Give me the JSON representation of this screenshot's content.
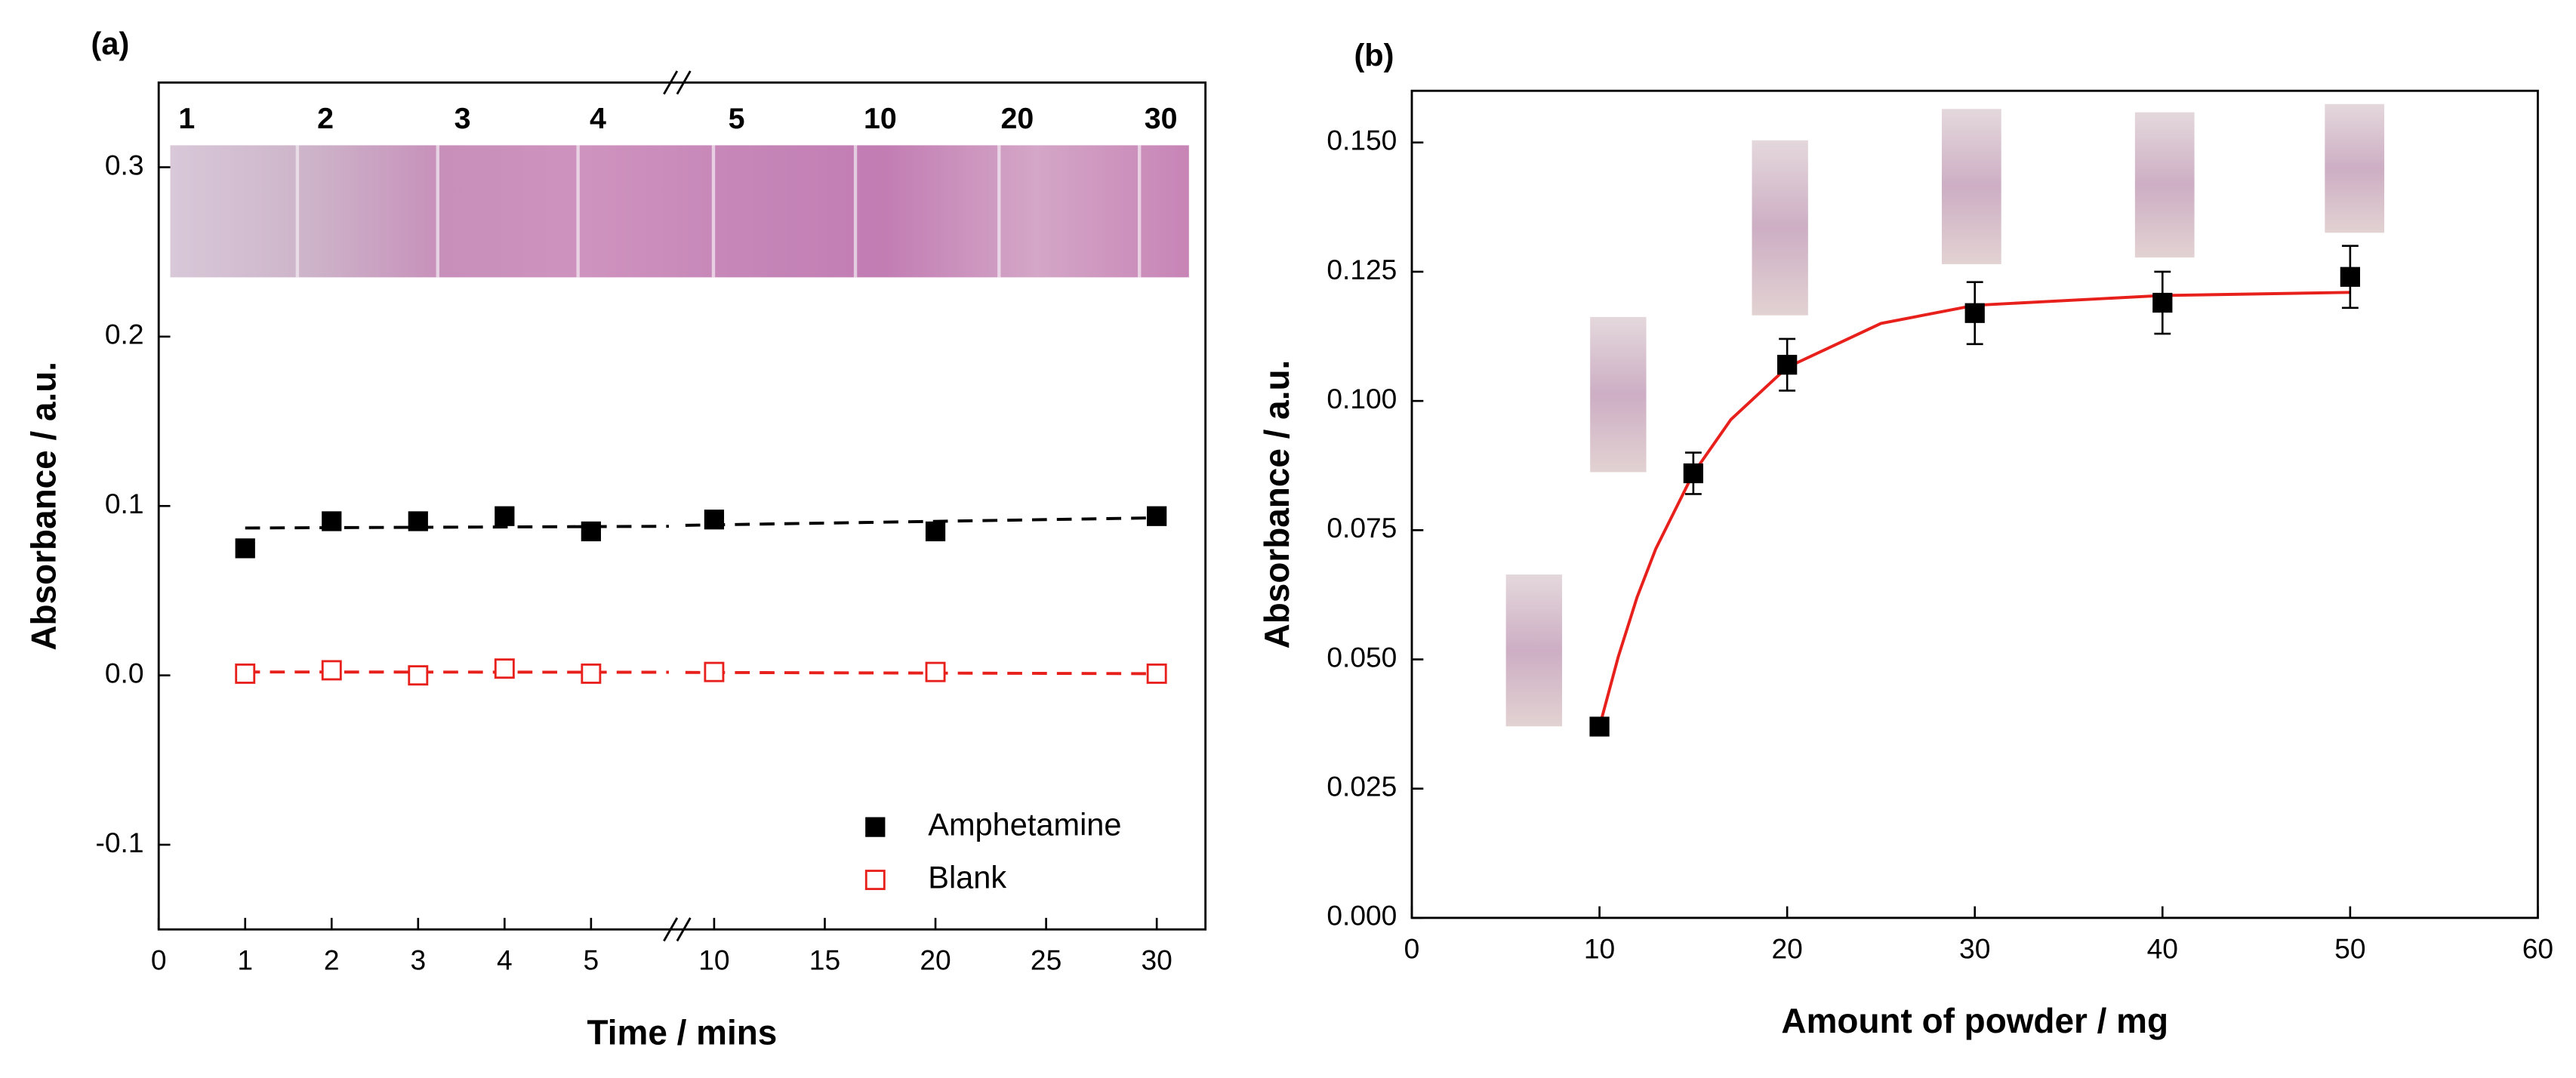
{
  "chart_data": [
    {
      "type": "scatter",
      "annotation": "(a)",
      "x_label": "Time / mins",
      "y_label": "Absorbance / a.u.",
      "photo_labels": [
        "1",
        "2",
        "3",
        "4",
        "5",
        "10",
        "20",
        "30"
      ],
      "x_segments": [
        {
          "xlim": [
            0,
            5.9
          ],
          "xticks": [
            0,
            1,
            2,
            3,
            4,
            5
          ]
        },
        {
          "xlim": [
            8.7,
            32.2
          ],
          "xticks": [
            10,
            15,
            20,
            25,
            30
          ]
        }
      ],
      "ylim": [
        -0.15,
        0.35
      ],
      "yticks": [
        -0.1,
        {
          "value": 0,
          "label": "0.0"
        },
        0.1,
        0.2,
        0.3
      ],
      "legend": "lower right",
      "series": [
        {
          "name": "Amphetamine",
          "color": "#000000",
          "marker": "filled-square",
          "x": [
            1,
            2,
            3,
            4,
            5,
            10,
            20,
            30
          ],
          "values": [
            0.075,
            0.091,
            0.091,
            0.094,
            0.085,
            0.092,
            0.085,
            0.094
          ]
        },
        {
          "name": "Blank",
          "color": "#e8201c",
          "marker": "open-square",
          "x": [
            1,
            2,
            3,
            4,
            5,
            10,
            20,
            30
          ],
          "values": [
            0.001,
            0.003,
            0.0,
            0.004,
            0.001,
            0.002,
            0.002,
            0.001
          ]
        }
      ],
      "fits": [
        {
          "color": "#000000",
          "dashed": true,
          "x": [
            1,
            30
          ],
          "values": [
            0.087,
            0.093
          ]
        },
        {
          "color": "#e8201c",
          "dashed": true,
          "x": [
            1,
            30
          ],
          "values": [
            0.002,
            0.001
          ]
        }
      ]
    },
    {
      "type": "scatter",
      "annotation": "(b)",
      "x_label": "Amount of powder / mg",
      "y_label": "Absorbance / a.u.",
      "xlim": [
        0,
        60
      ],
      "xticks": [
        0,
        10,
        20,
        30,
        40,
        50,
        60
      ],
      "ylim": [
        0,
        0.16
      ],
      "yticks": [
        {
          "value": 0,
          "label": "0.000"
        },
        {
          "value": 0.025,
          "label": "0.025"
        },
        {
          "value": 0.05,
          "label": "0.050"
        },
        {
          "value": 0.075,
          "label": "0.075"
        },
        {
          "value": 0.1,
          "label": "0.100"
        },
        {
          "value": 0.125,
          "label": "0.125"
        },
        {
          "value": 0.15,
          "label": "0.150"
        }
      ],
      "series": [
        {
          "color": "#000000",
          "marker": "filled-square",
          "x": [
            10,
            15,
            20,
            30,
            40,
            50
          ],
          "values": [
            0.037,
            0.086,
            0.107,
            0.117,
            0.119,
            0.124
          ],
          "errors": [
            0.001,
            0.004,
            0.005,
            0.006,
            0.006,
            0.006
          ]
        }
      ],
      "fits": [
        {
          "color": "#e8201c",
          "dashed": false,
          "x": [
            10,
            11,
            12,
            13,
            15,
            17,
            20,
            25,
            30,
            40,
            50
          ],
          "values": [
            0.037,
            0.0505,
            0.062,
            0.0714,
            0.086,
            0.0964,
            0.1065,
            0.115,
            0.1185,
            0.1204,
            0.121
          ]
        }
      ]
    }
  ]
}
